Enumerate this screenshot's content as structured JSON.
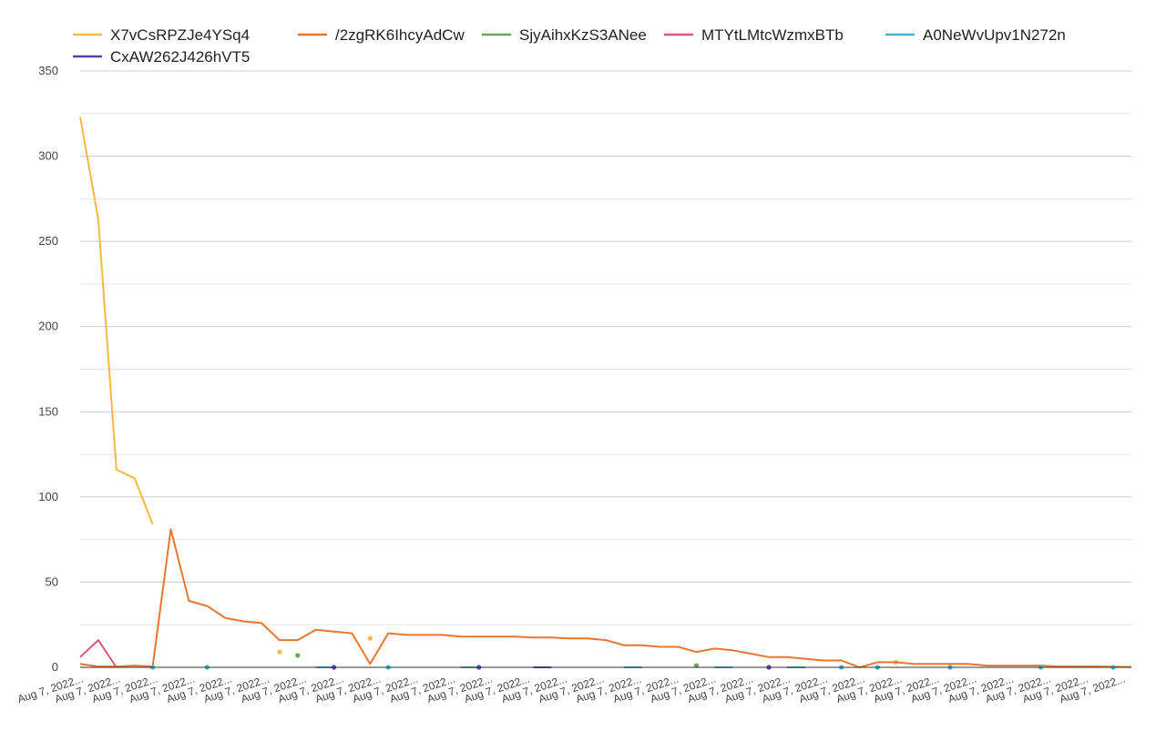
{
  "chart_data": {
    "type": "line",
    "title": "",
    "xlabel": "",
    "ylabel": "",
    "ylim": [
      0,
      350
    ],
    "y_ticks": [
      0,
      50,
      100,
      150,
      200,
      250,
      300,
      350
    ],
    "grid": true,
    "legend_position": "top",
    "x_tick_labels": [
      "Aug 7, 2022...",
      "Aug 7, 2022...",
      "Aug 7, 2022...",
      "Aug 7, 2022...",
      "Aug 7, 2022...",
      "Aug 7, 2022...",
      "Aug 7, 2022...",
      "Aug 7, 2022...",
      "Aug 7, 2022...",
      "Aug 7, 2022...",
      "Aug 7, 2022...",
      "Aug 7, 2022...",
      "Aug 7, 2022...",
      "Aug 7, 2022...",
      "Aug 7, 2022...",
      "Aug 7, 2022...",
      "Aug 7, 2022...",
      "Aug 7, 2022...",
      "Aug 7, 2022...",
      "Aug 7, 2022...",
      "Aug 7, 2022...",
      "Aug 7, 2022...",
      "Aug 7, 2022...",
      "Aug 7, 2022...",
      "Aug 7, 2022...",
      "Aug 7, 2022...",
      "Aug 7, 2022...",
      "Aug 7, 2022...",
      "Aug 7, 2022..."
    ],
    "series": [
      {
        "name": "X7vCsRPZJe4YSq4",
        "color": "#f4b942",
        "values": [
          323,
          263,
          116,
          111,
          84,
          null,
          null,
          null,
          null,
          null,
          null,
          9,
          null,
          null,
          null,
          null,
          17,
          null,
          null,
          null,
          null,
          null,
          null,
          null,
          null,
          null,
          null,
          null,
          null,
          null,
          null,
          null,
          null,
          null,
          null,
          null,
          null,
          null,
          null,
          null,
          null,
          null,
          null,
          null,
          null,
          3,
          null,
          null,
          null,
          null,
          null,
          null,
          null,
          null,
          null,
          null,
          null,
          null,
          null
        ]
      },
      {
        "name": "/2zgRK6IhcyAdCw",
        "color": "#e8772e",
        "values": [
          2,
          0.5,
          0.5,
          1,
          0.5,
          81,
          39,
          36,
          29,
          27,
          26,
          16,
          16,
          22,
          21,
          20,
          2,
          20,
          19,
          19,
          19,
          18,
          18,
          18,
          18,
          17.5,
          17.5,
          17,
          17,
          16,
          13,
          13,
          12,
          12,
          9,
          11,
          10,
          8,
          6,
          6,
          5,
          4,
          4,
          0,
          3,
          3,
          2,
          2,
          2,
          2,
          1,
          1,
          1,
          1,
          0.5,
          0.5,
          0.5,
          0.3,
          0.2
        ]
      },
      {
        "name": "SjyAihxKzS3ANee",
        "color": "#6aa84f",
        "values": [
          null,
          null,
          null,
          null,
          null,
          null,
          null,
          null,
          null,
          null,
          null,
          null,
          7,
          null,
          null,
          null,
          null,
          null,
          null,
          null,
          null,
          null,
          null,
          null,
          null,
          null,
          null,
          null,
          null,
          null,
          null,
          null,
          null,
          null,
          1,
          null,
          null,
          null,
          null,
          null,
          null,
          null,
          null,
          null,
          null,
          null,
          null,
          null,
          null,
          null,
          null,
          null,
          null,
          null,
          null,
          null,
          null,
          null,
          null
        ]
      },
      {
        "name": "MTYtLMtcWzmxBTb",
        "color": "#d9577d",
        "values": [
          6,
          16,
          0,
          null,
          null,
          null,
          null,
          null,
          null,
          null,
          null,
          null,
          null,
          null,
          null,
          null,
          null,
          null,
          null,
          null,
          null,
          null,
          null,
          null,
          null,
          null,
          null,
          null,
          null,
          null,
          null,
          null,
          null,
          null,
          null,
          null,
          null,
          null,
          null,
          null,
          null,
          null,
          null,
          null,
          null,
          null,
          null,
          null,
          null,
          null,
          null,
          null,
          null,
          null,
          null,
          null,
          null,
          null,
          null
        ]
      },
      {
        "name": "A0NeWvUpv1N272n",
        "color": "#46b2cf",
        "values": [
          null,
          null,
          null,
          null,
          0,
          null,
          null,
          0,
          null,
          null,
          null,
          null,
          null,
          0,
          0,
          null,
          null,
          0,
          null,
          null,
          null,
          0,
          0,
          null,
          null,
          null,
          null,
          null,
          null,
          null,
          0,
          0,
          null,
          null,
          null,
          0,
          0,
          null,
          null,
          0,
          0,
          null,
          0,
          null,
          0,
          null,
          null,
          null,
          0,
          null,
          null,
          null,
          null,
          0,
          null,
          null,
          null,
          0,
          null
        ]
      },
      {
        "name": "CxAW262J426hVT5",
        "color": "#5b3bb5",
        "values": [
          null,
          null,
          null,
          null,
          null,
          null,
          null,
          null,
          null,
          null,
          null,
          null,
          null,
          null,
          0,
          null,
          null,
          null,
          null,
          null,
          null,
          null,
          0,
          null,
          null,
          0,
          0,
          null,
          null,
          null,
          null,
          null,
          null,
          null,
          null,
          null,
          null,
          null,
          0,
          null,
          null,
          null,
          null,
          null,
          null,
          null,
          null,
          null,
          null,
          null,
          null,
          null,
          null,
          null,
          null,
          null,
          null,
          null,
          null
        ]
      }
    ]
  }
}
